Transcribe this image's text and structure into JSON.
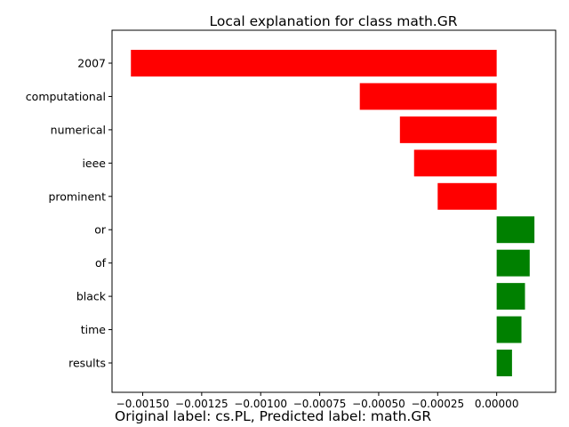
{
  "chart_data": {
    "type": "bar",
    "orientation": "horizontal",
    "title": "Local explanation for class math.GR",
    "categories": [
      "2007",
      "computational",
      "numerical",
      "ieee",
      "prominent",
      "or",
      "of",
      "black",
      "time",
      "results"
    ],
    "values": [
      -0.00155,
      -0.00058,
      -0.00041,
      -0.00035,
      -0.00025,
      0.00016,
      0.00014,
      0.00012,
      0.000105,
      6.5e-05
    ],
    "xlim": [
      -0.00163,
      0.00025
    ],
    "x_ticks": [
      -0.0015,
      -0.00125,
      -0.001,
      -0.00075,
      -0.0005,
      -0.00025,
      0.0
    ],
    "x_tick_labels": [
      "−0.00150",
      "−0.00125",
      "−0.00100",
      "−0.00075",
      "−0.00050",
      "−0.00025",
      "0.00000"
    ],
    "colors": {
      "positive": "#008000",
      "negative": "#ff0000"
    },
    "grid": false,
    "footer": "Original label: cs.PL, Predicted label: math.GR"
  }
}
